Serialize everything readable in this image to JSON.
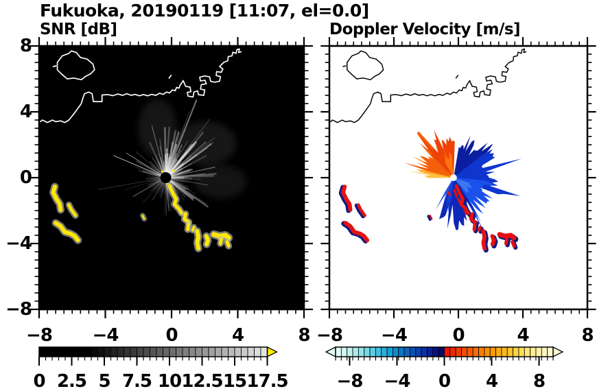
{
  "title": "Fukuoka, 20190119 [11:07, el=0.0]",
  "panels": [
    {
      "title": "SNR [dB]",
      "background": "#000000",
      "coast_color": "#ffffff"
    },
    {
      "title": "Doppler Velocity [m/s]",
      "background": "#ffffff",
      "coast_color": "#000000"
    }
  ],
  "axes": {
    "x_tick_labels": [
      "−8",
      "−4",
      "0",
      "4",
      "8"
    ],
    "x_tick_values": [
      -8,
      -4,
      0,
      4,
      8
    ],
    "y_tick_labels": [
      "8",
      "4",
      "0",
      "−4",
      "−8"
    ],
    "y_tick_values": [
      8,
      4,
      0,
      -4,
      -8
    ],
    "x_range": [
      -8,
      8
    ],
    "y_range": [
      -8,
      8
    ],
    "minor_tick_step": 0.5
  },
  "colorbars": [
    {
      "name": "snr",
      "labels": [
        "0",
        "2.5",
        "5",
        "7.5",
        "10",
        "12.5",
        "15",
        "17.5"
      ],
      "label_values": [
        0,
        2.5,
        5,
        7.5,
        10,
        12.5,
        15,
        17.5
      ],
      "range": [
        0,
        17.5
      ],
      "overflow_arrow_color": "#ffef00",
      "colors": [
        "#000000",
        "#000000",
        "#000000",
        "#000000",
        "#000000",
        "#000000",
        "#000000",
        "#000000",
        "#080808",
        "#111111",
        "#191919",
        "#222222",
        "#2a2a2a",
        "#333333",
        "#3b3b3b",
        "#444444",
        "#4c4c4c",
        "#555555",
        "#5d5d5d",
        "#656565",
        "#6e6e6e",
        "#767676",
        "#7f7f7f",
        "#878787",
        "#909090",
        "#989898",
        "#a1a1a1",
        "#a9a9a9",
        "#b2b2b2",
        "#bababa",
        "#c2c2c2",
        "#cbcbcb",
        "#d3d3d3",
        "#dcdcdc",
        "#e4e4e4"
      ]
    },
    {
      "name": "velocity",
      "labels": [
        "−8",
        "−4",
        "0",
        "4",
        "8"
      ],
      "label_values": [
        -8,
        -4,
        0,
        4,
        8
      ],
      "range": [
        -10,
        10
      ],
      "arrow_left_color": "#e6fbf7",
      "arrow_right_color": "#fdf9d8",
      "colors": [
        "#e2faf6",
        "#d2f5f1",
        "#c0f1ee",
        "#aaeaeb",
        "#92e3e9",
        "#77d9e7",
        "#5bcde5",
        "#41c0e2",
        "#2bb0dc",
        "#1b9ed6",
        "#0f8ace",
        "#0a76c6",
        "#0a64be",
        "#0a52b6",
        "#0a42ae",
        "#0a32a4",
        "#081f96",
        "#071282",
        "#040a66",
        "#e91306",
        "#ec2a06",
        "#ef3c06",
        "#f14d06",
        "#f35d06",
        "#f56d06",
        "#f77d06",
        "#f98d06",
        "#fb9d08",
        "#fcab10",
        "#fdb81c",
        "#fec52c",
        "#fed242",
        "#fedd5c",
        "#fee678",
        "#feed92",
        "#fef2aa",
        "#fdf6c0",
        "#fdf8d0"
      ]
    }
  ],
  "chart_data": [
    {
      "type": "heatmap",
      "title": "SNR [dB]",
      "x_range": [
        -8,
        8
      ],
      "y_range": [
        -8,
        8
      ],
      "x_ticks": [
        -8,
        -4,
        0,
        4,
        8
      ],
      "y_ticks": [
        8,
        4,
        0,
        -4,
        -8
      ],
      "colorbar": {
        "min": 0,
        "max": 17.5,
        "ticks": [
          0,
          2.5,
          5,
          7.5,
          10,
          12.5,
          15,
          17.5
        ],
        "scale": "grayscale black to white, yellow arrow for >17.5 dB"
      },
      "radar_center": [
        -0.35,
        0.0
      ],
      "features": [
        "black background (no echo)",
        "gray radial echo streaks fanning out from radar center, brightest toward N, NE and E",
        "high-SNR yellow blob chain from center toward (3.4, -4.2)",
        "yellow arc-shaped echoes near (-7.1,-0.6)..(-5.6,-3.8)",
        "small yellow dash near (-1.7,-2.4)",
        "white coastline with island at upper left and angular harbor piers at upper right"
      ]
    },
    {
      "type": "heatmap",
      "title": "Doppler Velocity [m/s]",
      "x_range": [
        -8,
        8
      ],
      "y_range": [
        -8,
        8
      ],
      "x_ticks": [
        -8,
        -4,
        0,
        4,
        8
      ],
      "y_ticks": [
        8,
        4,
        0,
        -4,
        -8
      ],
      "colorbar": {
        "min": -10,
        "max": 10,
        "ticks": [
          -8,
          -4,
          0,
          4,
          8
        ],
        "scale": "pale cyan to navy for negative, red to pale yellow for positive, arrows both ends"
      },
      "radar_center": [
        -0.3,
        0.0
      ],
      "features": [
        "white background (no echo)",
        "positive (orange/red-orange) velocity fan NW and W of radar",
        "negative (blue/navy) velocity fan NE, E and SSE of radar",
        "red fringe along SW edge of blue fan",
        "red/navy echo blob chain toward (3.4, -4.2)",
        "red/navy arc echoes near (-7.1,-0.6)..(-5.6,-3.8)",
        "white dot at radar site, black coastline overlay"
      ]
    }
  ]
}
